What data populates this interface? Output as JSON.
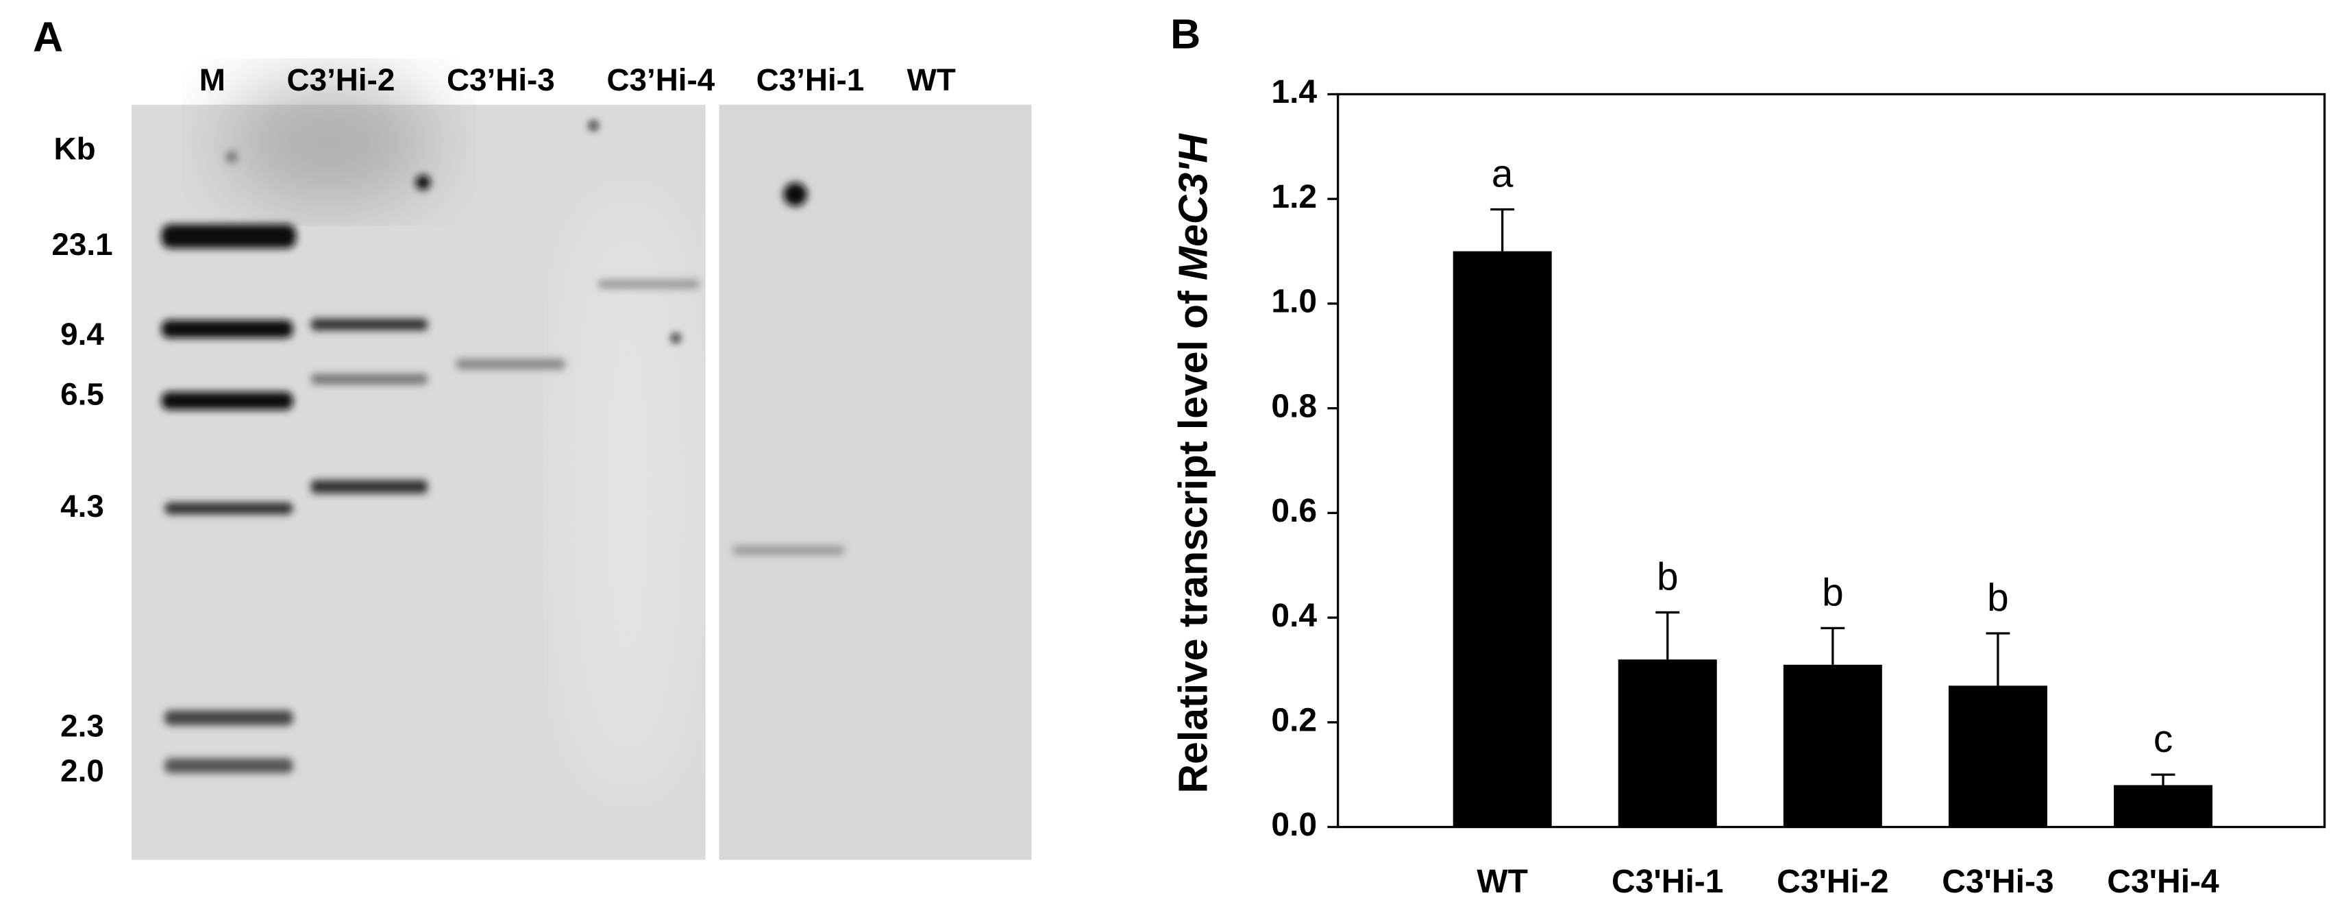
{
  "panel_a": {
    "label": "A",
    "lanes": [
      "M",
      "C3’Hi-2",
      "C3’Hi-3",
      "C3’Hi-4",
      "C3’Hi-1",
      "WT"
    ],
    "unit": "Kb",
    "sizes": [
      "23.1",
      "9.4",
      "6.5",
      "4.3",
      "2.3",
      "2.0"
    ]
  },
  "chart_data": {
    "type": "bar",
    "label": "B",
    "y_label": "Relative transcript level of",
    "y_label_gene": "MeC3'H",
    "categories": [
      "WT",
      "C3'Hi-1",
      "C3'Hi-2",
      "C3'Hi-3",
      "C3'Hi-4"
    ],
    "values": [
      1.1,
      0.32,
      0.31,
      0.27,
      0.08
    ],
    "errors": [
      0.08,
      0.09,
      0.07,
      0.1,
      0.02
    ],
    "letters": [
      "a",
      "b",
      "b",
      "b",
      "c"
    ],
    "color": "#000000",
    "ylim": [
      0,
      1.4
    ],
    "yticks": [
      {
        "value": 0,
        "label": "0.0"
      },
      0.2,
      0.4,
      0.6,
      0.8,
      {
        "value": 1,
        "label": "1.0"
      },
      1.2,
      1.4
    ]
  }
}
